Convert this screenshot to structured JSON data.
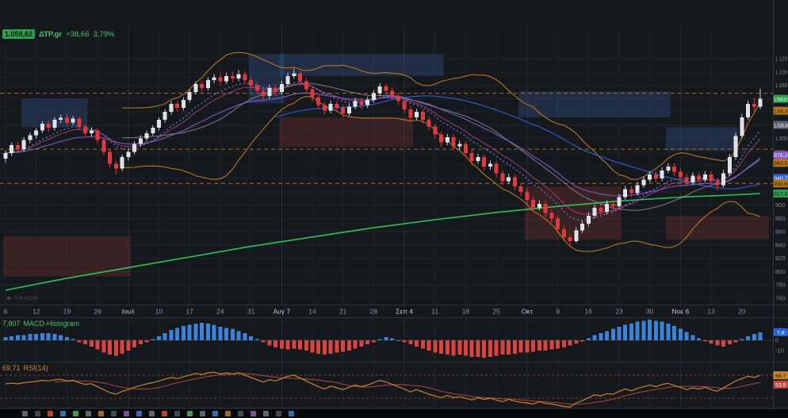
{
  "app": {
    "watermark_icon": "◆",
    "watermark": "TRADE"
  },
  "header": {
    "price": "1.059,62",
    "symbol": "ΔΤΡ.gr",
    "change": "+38,66",
    "change_pct": "3,79%"
  },
  "panes": {
    "macd": {
      "value": "7,807",
      "name": "MACD-Histogram",
      "badge": "7,8"
    },
    "rsi": {
      "value": "69,71",
      "name": "RSI(14)",
      "badge_main": "69,7",
      "badge_secondary": "53,9"
    }
  },
  "chart_data": {
    "type": "candlestick",
    "symbol": "ΔΤΡ.gr",
    "last_price": 1059.62,
    "change": 38.66,
    "change_pct": 3.79,
    "price_axis": {
      "min": 760,
      "max": 1120,
      "step": 20,
      "labels": [
        "1.120",
        "1.100",
        "1.080",
        "1.060",
        "1.040",
        "1.020",
        "1.000",
        "980",
        "960",
        "940",
        "920",
        "900",
        "880",
        "860",
        "840",
        "820",
        "800",
        "780",
        "760"
      ]
    },
    "x_labels": [
      "6",
      "12",
      "19",
      "26",
      "Ιουλ",
      "10",
      "17",
      "24",
      "31",
      "Αυγ 7",
      "14",
      "21",
      "28",
      "Σεπ 4",
      "11",
      "18",
      "25",
      "Οκτ",
      "9",
      "16",
      "23",
      "30",
      "Νοε 6",
      "13",
      "20"
    ],
    "major_indices": [
      4,
      9,
      13,
      17,
      22
    ],
    "candles": [
      [
        970,
        982,
        964,
        978
      ],
      [
        978,
        994,
        974,
        990
      ],
      [
        990,
        995,
        978,
        984
      ],
      [
        984,
        1002,
        980,
        998
      ],
      [
        998,
        1009,
        993,
        1005
      ],
      [
        1005,
        1016,
        1000,
        1012
      ],
      [
        1012,
        1026,
        1008,
        1022
      ],
      [
        1022,
        1027,
        1010,
        1016
      ],
      [
        1016,
        1032,
        1012,
        1028
      ],
      [
        1028,
        1036,
        1023,
        1031
      ],
      [
        1031,
        1036,
        1019,
        1024
      ],
      [
        1024,
        1034,
        1020,
        1030
      ],
      [
        1030,
        1033,
        1013,
        1018
      ],
      [
        1018,
        1022,
        1002,
        1008
      ],
      [
        1008,
        1017,
        1003,
        1012
      ],
      [
        1012,
        1015,
        993,
        998
      ],
      [
        998,
        1002,
        975,
        980
      ],
      [
        980,
        984,
        956,
        962
      ],
      [
        962,
        966,
        946,
        955
      ],
      [
        955,
        976,
        951,
        972
      ],
      [
        972,
        985,
        967,
        980
      ],
      [
        980,
        996,
        976,
        992
      ],
      [
        992,
        1005,
        988,
        1000
      ],
      [
        1000,
        1012,
        996,
        1008
      ],
      [
        1008,
        1020,
        1004,
        1016
      ],
      [
        1016,
        1032,
        1012,
        1028
      ],
      [
        1028,
        1044,
        1024,
        1040
      ],
      [
        1040,
        1056,
        1036,
        1052
      ],
      [
        1052,
        1056,
        1040,
        1046
      ],
      [
        1046,
        1062,
        1042,
        1058
      ],
      [
        1058,
        1074,
        1054,
        1070
      ],
      [
        1070,
        1086,
        1066,
        1082
      ],
      [
        1082,
        1086,
        1070,
        1076
      ],
      [
        1076,
        1092,
        1072,
        1088
      ],
      [
        1088,
        1097,
        1083,
        1092
      ],
      [
        1092,
        1098,
        1080,
        1086
      ],
      [
        1086,
        1099,
        1082,
        1094
      ],
      [
        1094,
        1100,
        1084,
        1090
      ],
      [
        1090,
        1103,
        1086,
        1097
      ],
      [
        1097,
        1101,
        1082,
        1088
      ],
      [
        1088,
        1093,
        1074,
        1080
      ],
      [
        1080,
        1085,
        1066,
        1072
      ],
      [
        1072,
        1077,
        1058,
        1064
      ],
      [
        1064,
        1081,
        1060,
        1076
      ],
      [
        1076,
        1081,
        1064,
        1070
      ],
      [
        1070,
        1087,
        1066,
        1082
      ],
      [
        1082,
        1099,
        1078,
        1094
      ],
      [
        1094,
        1105,
        1090,
        1098
      ],
      [
        1098,
        1102,
        1080,
        1086
      ],
      [
        1086,
        1091,
        1068,
        1074
      ],
      [
        1074,
        1079,
        1056,
        1062
      ],
      [
        1062,
        1067,
        1044,
        1050
      ],
      [
        1050,
        1055,
        1036,
        1042
      ],
      [
        1042,
        1057,
        1038,
        1052
      ],
      [
        1052,
        1057,
        1040,
        1046
      ],
      [
        1046,
        1051,
        1032,
        1038
      ],
      [
        1038,
        1053,
        1034,
        1048
      ],
      [
        1048,
        1061,
        1044,
        1056
      ],
      [
        1056,
        1061,
        1044,
        1050
      ],
      [
        1050,
        1063,
        1046,
        1058
      ],
      [
        1058,
        1073,
        1054,
        1068
      ],
      [
        1068,
        1083,
        1064,
        1078
      ],
      [
        1078,
        1083,
        1066,
        1072
      ],
      [
        1072,
        1077,
        1058,
        1064
      ],
      [
        1064,
        1069,
        1050,
        1056
      ],
      [
        1056,
        1061,
        1038,
        1044
      ],
      [
        1044,
        1049,
        1026,
        1032
      ],
      [
        1032,
        1045,
        1028,
        1040
      ],
      [
        1040,
        1044,
        1022,
        1028
      ],
      [
        1028,
        1033,
        1012,
        1018
      ],
      [
        1018,
        1023,
        1000,
        1006
      ],
      [
        1006,
        1011,
        988,
        994
      ],
      [
        994,
        1007,
        990,
        1002
      ],
      [
        1002,
        1006,
        982,
        988
      ],
      [
        988,
        997,
        983,
        992
      ],
      [
        992,
        996,
        972,
        978
      ],
      [
        978,
        983,
        960,
        966
      ],
      [
        966,
        977,
        962,
        972
      ],
      [
        972,
        976,
        952,
        958
      ],
      [
        958,
        967,
        953,
        962
      ],
      [
        962,
        966,
        942,
        948
      ],
      [
        948,
        953,
        930,
        936
      ],
      [
        936,
        947,
        932,
        942
      ],
      [
        942,
        946,
        922,
        928
      ],
      [
        928,
        933,
        914,
        920
      ],
      [
        920,
        925,
        902,
        908
      ],
      [
        908,
        913,
        890,
        896
      ],
      [
        896,
        907,
        892,
        902
      ],
      [
        902,
        906,
        882,
        888
      ],
      [
        888,
        893,
        874,
        880
      ],
      [
        880,
        885,
        858,
        864
      ],
      [
        864,
        869,
        846,
        852
      ],
      [
        852,
        857,
        838,
        846
      ],
      [
        846,
        867,
        843,
        862
      ],
      [
        862,
        877,
        858,
        872
      ],
      [
        872,
        889,
        868,
        884
      ],
      [
        884,
        901,
        880,
        896
      ],
      [
        896,
        901,
        884,
        890
      ],
      [
        890,
        907,
        886,
        902
      ],
      [
        902,
        907,
        892,
        898
      ],
      [
        898,
        917,
        894,
        912
      ],
      [
        912,
        929,
        908,
        924
      ],
      [
        924,
        929,
        912,
        918
      ],
      [
        918,
        935,
        914,
        930
      ],
      [
        930,
        943,
        926,
        938
      ],
      [
        938,
        951,
        934,
        946
      ],
      [
        946,
        951,
        934,
        940
      ],
      [
        940,
        957,
        936,
        952
      ],
      [
        952,
        963,
        948,
        958
      ],
      [
        958,
        963,
        944,
        950
      ],
      [
        950,
        955,
        936,
        942
      ],
      [
        942,
        947,
        928,
        934
      ],
      [
        934,
        949,
        930,
        944
      ],
      [
        944,
        949,
        932,
        938
      ],
      [
        938,
        951,
        934,
        946
      ],
      [
        946,
        951,
        930,
        936
      ],
      [
        936,
        941,
        922,
        930
      ],
      [
        930,
        953,
        926,
        948
      ],
      [
        948,
        977,
        944,
        972
      ],
      [
        972,
        1009,
        968,
        1004
      ],
      [
        1004,
        1037,
        1000,
        1032
      ],
      [
        1032,
        1057,
        1028,
        1052
      ],
      [
        1052,
        1061,
        1040,
        1048
      ],
      [
        1048,
        1075,
        1044,
        1059.6
      ]
    ],
    "overlays": {
      "bollinger": {
        "period": 20,
        "band_color": "#c07a1e",
        "mid_color": "#98a0a8"
      },
      "ma_dashed_blue": {
        "period": 9,
        "color": "#5b7fe8"
      },
      "ma_pink": {
        "period": 12,
        "color": "#c2477f"
      },
      "ma_purple": {
        "period": 25,
        "color": "#8757c8",
        "last_value": 975.2
      },
      "ma_blue": {
        "period": 45,
        "color": "#2e62d9",
        "last_value": 940.7
      },
      "ma_green": {
        "color": "#2ecc5e",
        "last_value": 917.3,
        "points": [
          [
            0,
            772
          ],
          [
            10,
            790
          ],
          [
            20,
            806
          ],
          [
            30,
            822
          ],
          [
            40,
            838
          ],
          [
            50,
            852
          ],
          [
            60,
            866
          ],
          [
            70,
            878
          ],
          [
            80,
            889
          ],
          [
            90,
            898
          ],
          [
            100,
            906
          ],
          [
            110,
            912
          ],
          [
            118,
            915
          ],
          [
            123,
            917.3
          ]
        ]
      }
    },
    "zones": [
      {
        "color": "blue",
        "i1": 3,
        "i2": 13,
        "p1": 1017,
        "p2": 1060
      },
      {
        "color": "blue",
        "i1": 40,
        "i2": 45,
        "p1": 1053,
        "p2": 1127
      },
      {
        "color": "blue",
        "i1": 45,
        "i2": 71,
        "p1": 1094,
        "p2": 1127
      },
      {
        "color": "blue",
        "i1": 84,
        "i2": 108,
        "p1": 1032,
        "p2": 1071
      },
      {
        "color": "blue",
        "i1": 108,
        "i2": 119,
        "p1": 982,
        "p2": 1017
      },
      {
        "color": "red",
        "i1": 0,
        "i2": 20,
        "p1": 793,
        "p2": 853
      },
      {
        "color": "red",
        "i1": 45,
        "i2": 66,
        "p1": 987,
        "p2": 1032
      },
      {
        "color": "red",
        "i1": 85,
        "i2": 100,
        "p1": 848,
        "p2": 928
      },
      {
        "color": "red",
        "i1": 108,
        "i2": 124,
        "p1": 848,
        "p2": 884
      }
    ],
    "hlines": [
      {
        "price": 1068
      },
      {
        "price": 984
      },
      {
        "price": 932.6
      }
    ],
    "axis_badges": [
      {
        "text": "1.059,62",
        "price": 1059.62,
        "bg": "#2e9e4f",
        "fg": "#ffffff"
      },
      {
        "text": "1.041,8",
        "price": 1041.8,
        "bg": "#b8741a",
        "fg": "#14181e"
      },
      {
        "text": "1.020,4",
        "price": 1020.4,
        "bg": "#5a6472",
        "fg": "#ffffff"
      },
      {
        "text": "975,2",
        "price": 975.2,
        "bg": "#8757c8",
        "fg": "#ffffff"
      },
      {
        "text": "963,5",
        "price": 963.5,
        "bg": "#b8741a",
        "fg": "#14181e"
      },
      {
        "text": "940,7",
        "price": 940.7,
        "bg": "#2e62d9",
        "fg": "#ffffff"
      },
      {
        "text": "932,6",
        "price": 932.6,
        "bg": "#b8741a",
        "fg": "#14181e"
      },
      {
        "text": "917,3",
        "price": 917.3,
        "bg": "#2e9e4f",
        "fg": "#0c1a10"
      }
    ],
    "macd": {
      "type": "histogram",
      "last": 7.8,
      "ticks": [
        {
          "label": "10",
          "value": 10
        },
        {
          "label": "0",
          "value": 0
        },
        {
          "label": "-10",
          "value": -10
        }
      ],
      "values": [
        3,
        4,
        5,
        5,
        6,
        6,
        7,
        7,
        6,
        5,
        3,
        1,
        -2,
        -4,
        -6,
        -9,
        -12,
        -14,
        -15,
        -13,
        -10,
        -7,
        -4,
        -2,
        1,
        4,
        7,
        10,
        12,
        14,
        15,
        16,
        17,
        16,
        15,
        13,
        12,
        11,
        9,
        7,
        4,
        1,
        -2,
        -5,
        -7,
        -8,
        -9,
        -8,
        -9,
        -10,
        -12,
        -13,
        -14,
        -13,
        -12,
        -11,
        -10,
        -8,
        -6,
        -4,
        -2,
        1,
        3,
        2,
        0,
        -2,
        -4,
        -6,
        -8,
        -10,
        -12,
        -13,
        -14,
        -15,
        -14,
        -15,
        -16,
        -16,
        -17,
        -16,
        -15,
        -14,
        -14,
        -13,
        -12,
        -12,
        -11,
        -10,
        -10,
        -9,
        -8,
        -7,
        -5,
        -3,
        -1,
        2,
        5,
        7,
        9,
        11,
        13,
        15,
        16,
        18,
        19,
        20,
        19,
        18,
        16,
        14,
        11,
        8,
        5,
        2,
        -1,
        -3,
        -5,
        -6,
        -4,
        -2,
        1,
        4,
        6,
        7.8
      ]
    },
    "rsi": {
      "period": 14,
      "last": 69.7,
      "ma_last": 53.9,
      "levels": [
        70,
        30
      ],
      "values": [
        55,
        56,
        55,
        57,
        58,
        59,
        61,
        60,
        62,
        63,
        60,
        61,
        57,
        54,
        55,
        50,
        45,
        40,
        37,
        42,
        45,
        49,
        52,
        55,
        57,
        60,
        63,
        66,
        64,
        67,
        70,
        73,
        71,
        74,
        75,
        72,
        74,
        72,
        74,
        70,
        66,
        62,
        58,
        62,
        60,
        64,
        68,
        70,
        65,
        60,
        55,
        50,
        46,
        51,
        48,
        45,
        49,
        53,
        50,
        53,
        57,
        61,
        58,
        54,
        50,
        46,
        41,
        45,
        41,
        37,
        34,
        31,
        35,
        31,
        33,
        30,
        27,
        31,
        28,
        30,
        27,
        24,
        28,
        25,
        23,
        22,
        20,
        24,
        21,
        20,
        18,
        16,
        15,
        22,
        26,
        31,
        36,
        34,
        38,
        37,
        42,
        46,
        43,
        47,
        50,
        53,
        50,
        54,
        56,
        52,
        49,
        45,
        48,
        46,
        49,
        45,
        42,
        48,
        54,
        60,
        64,
        68,
        66,
        69.7
      ]
    }
  },
  "bottom_bar": {
    "icons": [
      "#5f666d",
      "#424950",
      "#b5452f",
      "#3c6db3",
      "#4e9150",
      "#5f666d",
      "#9a6a2f",
      "#424950",
      "#7d4f93",
      "#3c6db3",
      "#5f666d",
      "#b5452f",
      "#424950",
      "#4e9150",
      "#5f666d",
      "#3c6db3",
      "#9a6a2f",
      "#424950",
      "#7d4f93",
      "#5f666d",
      "#424950",
      "#3c6db3"
    ]
  }
}
